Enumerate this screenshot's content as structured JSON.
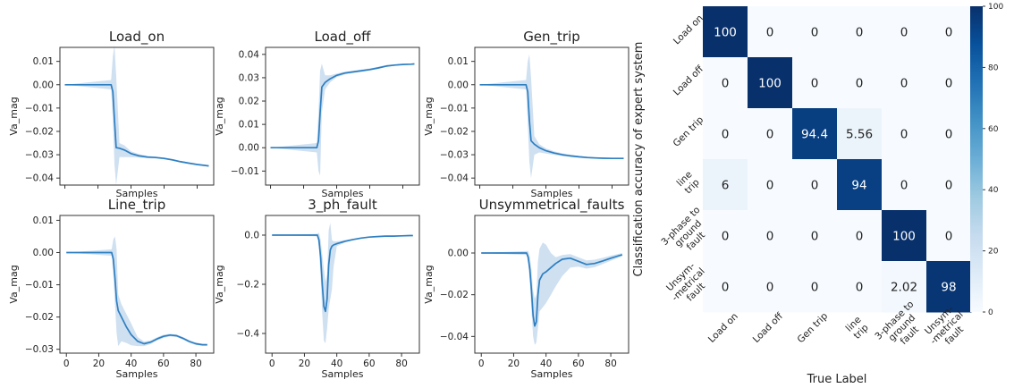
{
  "chart_data": [
    {
      "type": "line",
      "title": "Load_on",
      "xlabel": "Samples",
      "ylabel": "Va_mag",
      "xlim": [
        -3,
        90
      ],
      "ylim": [
        -0.043,
        0.016
      ],
      "xticks": [],
      "yticks": [
        0.01,
        0.0,
        -0.01,
        -0.02,
        -0.03,
        -0.04
      ],
      "ytick_labels": [
        "0.01",
        "0.00",
        "−0.01",
        "−0.02",
        "−0.03",
        "−0.04"
      ],
      "grid": false,
      "band_color": "#cfe0f1",
      "line_color": "#2e7fc1",
      "x": [
        0,
        28,
        29,
        30,
        31,
        33,
        36,
        40,
        45,
        50,
        55,
        60,
        65,
        70,
        75,
        80,
        85,
        87
      ],
      "y": [
        0.0,
        0.0,
        -0.003,
        -0.015,
        -0.027,
        -0.0272,
        -0.028,
        -0.0295,
        -0.0305,
        -0.031,
        -0.0312,
        -0.0316,
        -0.0322,
        -0.033,
        -0.0336,
        -0.0342,
        -0.0346,
        -0.0348
      ],
      "band_upper": [
        0.0,
        0.002,
        0.012,
        0.017,
        0.004,
        -0.025,
        -0.026,
        -0.0285,
        -0.0298,
        -0.0305,
        -0.0308,
        -0.0312,
        -0.0318,
        -0.0326,
        -0.0333,
        -0.034,
        -0.0344,
        -0.0346
      ],
      "band_lower": [
        0.0,
        -0.002,
        -0.015,
        -0.034,
        -0.043,
        -0.031,
        -0.031,
        -0.031,
        -0.0312,
        -0.0315,
        -0.0316,
        -0.032,
        -0.0326,
        -0.0334,
        -0.034,
        -0.0345,
        -0.0348,
        -0.035
      ]
    },
    {
      "type": "line",
      "title": "Load_off",
      "xlabel": "Samples",
      "ylabel": "Va_mag",
      "xlim": [
        -3,
        90
      ],
      "ylim": [
        -0.016,
        0.043
      ],
      "xticks": [],
      "yticks": [
        0.04,
        0.03,
        0.02,
        0.01,
        0.0,
        -0.01
      ],
      "ytick_labels": [
        "0.04",
        "0.03",
        "0.02",
        "0.01",
        "0.00",
        "−0.01"
      ],
      "grid": false,
      "band_color": "#cfe0f1",
      "line_color": "#2e7fc1",
      "x": [
        0,
        28,
        29,
        30,
        31,
        33,
        36,
        40,
        45,
        50,
        55,
        60,
        65,
        70,
        75,
        80,
        85,
        87
      ],
      "y": [
        0.0,
        0.0,
        0.003,
        0.015,
        0.026,
        0.028,
        0.0295,
        0.031,
        0.032,
        0.0325,
        0.033,
        0.0335,
        0.0342,
        0.035,
        0.0354,
        0.0357,
        0.0358,
        0.0359
      ],
      "band_upper": [
        0.0,
        0.002,
        0.015,
        0.033,
        0.036,
        0.031,
        0.031,
        0.0318,
        0.0326,
        0.033,
        0.0335,
        0.034,
        0.0347,
        0.0354,
        0.0357,
        0.0359,
        0.036,
        0.0361
      ],
      "band_lower": [
        0.0,
        -0.002,
        -0.01,
        -0.012,
        0.015,
        0.025,
        0.028,
        0.0302,
        0.0314,
        0.032,
        0.0325,
        0.033,
        0.0337,
        0.0346,
        0.0351,
        0.0355,
        0.0356,
        0.0357
      ]
    },
    {
      "type": "line",
      "title": "Gen_trip",
      "xlabel": "Samples",
      "ylabel": "Va_mag",
      "xlim": [
        -3,
        90
      ],
      "ylim": [
        -0.043,
        0.016
      ],
      "xticks": [],
      "yticks": [
        0.01,
        0.0,
        -0.01,
        -0.02,
        -0.03,
        -0.04
      ],
      "ytick_labels": [
        "0.01",
        "0.00",
        "−0.01",
        "−0.02",
        "−0.03",
        "−0.04"
      ],
      "grid": false,
      "band_color": "#cfe0f1",
      "line_color": "#2e7fc1",
      "x": [
        0,
        28,
        29,
        30,
        31,
        33,
        36,
        40,
        45,
        50,
        55,
        60,
        65,
        70,
        75,
        80,
        85,
        87
      ],
      "y": [
        0.0,
        0.0,
        -0.003,
        -0.015,
        -0.024,
        -0.0255,
        -0.027,
        -0.0283,
        -0.0293,
        -0.03,
        -0.0305,
        -0.0309,
        -0.0312,
        -0.0314,
        -0.0315,
        -0.0316,
        -0.0316,
        -0.0316
      ],
      "band_upper": [
        0.0,
        0.002,
        0.01,
        0.013,
        0.003,
        -0.022,
        -0.0255,
        -0.0273,
        -0.0285,
        -0.0294,
        -0.03,
        -0.0305,
        -0.0308,
        -0.0311,
        -0.0313,
        -0.0314,
        -0.0314,
        -0.0314
      ],
      "band_lower": [
        0.0,
        -0.002,
        -0.016,
        -0.033,
        -0.04,
        -0.03,
        -0.029,
        -0.0295,
        -0.0301,
        -0.0306,
        -0.031,
        -0.0313,
        -0.0316,
        -0.0317,
        -0.0318,
        -0.0318,
        -0.0318,
        -0.0318
      ]
    },
    {
      "type": "line",
      "title": "Line_trip",
      "xlabel": "Samples",
      "ylabel": "Va_mag",
      "xlim": [
        -4,
        91
      ],
      "ylim": [
        -0.0312,
        0.0115
      ],
      "xticks": [
        0,
        20,
        40,
        60,
        80
      ],
      "yticks": [
        0.01,
        0.0,
        -0.01,
        -0.02,
        -0.03
      ],
      "ytick_labels": [
        "0.01",
        "0.00",
        "−0.01",
        "−0.02",
        "−0.03"
      ],
      "grid": false,
      "band_color": "#cfe0f1",
      "line_color": "#2e7fc1",
      "x": [
        0,
        28,
        29,
        30,
        31,
        32,
        34,
        37,
        40,
        44,
        48,
        52,
        56,
        60,
        64,
        68,
        72,
        76,
        80,
        84,
        87
      ],
      "y": [
        0.0,
        0.0,
        -0.002,
        -0.008,
        -0.015,
        -0.018,
        -0.02,
        -0.023,
        -0.0255,
        -0.0275,
        -0.0283,
        -0.0278,
        -0.0268,
        -0.026,
        -0.0256,
        -0.0258,
        -0.0266,
        -0.0276,
        -0.0283,
        -0.0286,
        -0.0286
      ],
      "band_upper": [
        0.0,
        0.001,
        0.004,
        0.005,
        0.001,
        -0.013,
        -0.016,
        -0.019,
        -0.022,
        -0.0262,
        -0.0276,
        -0.0273,
        -0.0263,
        -0.0255,
        -0.0252,
        -0.0254,
        -0.0262,
        -0.0272,
        -0.0279,
        -0.0283,
        -0.0284
      ],
      "band_lower": [
        0.0,
        -0.001,
        -0.007,
        -0.016,
        -0.025,
        -0.029,
        -0.0275,
        -0.028,
        -0.0288,
        -0.029,
        -0.029,
        -0.0284,
        -0.0273,
        -0.0265,
        -0.026,
        -0.0262,
        -0.027,
        -0.028,
        -0.0287,
        -0.0289,
        -0.0289
      ]
    },
    {
      "type": "line",
      "title": "3_ph_fault",
      "xlabel": "Samples",
      "ylabel": "Va_mag",
      "xlim": [
        -4,
        91
      ],
      "ylim": [
        -0.48,
        0.08
      ],
      "xticks": [
        0,
        20,
        40,
        60,
        80
      ],
      "yticks": [
        0.0,
        -0.2,
        -0.4
      ],
      "ytick_labels": [
        "0.0",
        "−0.2",
        "−0.4"
      ],
      "grid": false,
      "band_color": "#cfe0f1",
      "line_color": "#2e7fc1",
      "x": [
        0,
        28,
        29,
        30,
        31,
        32,
        33,
        34,
        35,
        36,
        37,
        38,
        40,
        45,
        50,
        55,
        60,
        65,
        70,
        75,
        80,
        85,
        87
      ],
      "y": [
        0.0,
        0.0,
        -0.02,
        -0.09,
        -0.2,
        -0.29,
        -0.31,
        -0.26,
        -0.12,
        -0.06,
        -0.045,
        -0.04,
        -0.035,
        -0.025,
        -0.018,
        -0.012,
        -0.008,
        -0.006,
        -0.004,
        -0.004,
        -0.003,
        -0.002,
        -0.002
      ],
      "band_upper": [
        0.0,
        0.005,
        0.01,
        -0.02,
        -0.08,
        -0.14,
        -0.19,
        -0.16,
        0.02,
        0.05,
        -0.02,
        -0.025,
        -0.025,
        -0.02,
        -0.015,
        -0.01,
        -0.006,
        -0.005,
        -0.003,
        -0.003,
        -0.002,
        -0.001,
        -0.001
      ],
      "band_lower": [
        0.0,
        -0.005,
        -0.05,
        -0.17,
        -0.32,
        -0.43,
        -0.44,
        -0.38,
        -0.3,
        -0.26,
        -0.22,
        -0.13,
        -0.045,
        -0.03,
        -0.021,
        -0.014,
        -0.01,
        -0.007,
        -0.005,
        -0.005,
        -0.004,
        -0.003,
        -0.003
      ]
    },
    {
      "type": "line",
      "title": "Unsymmetrical_faults",
      "xlabel": "Samples",
      "ylabel": "Va_mag",
      "xlim": [
        -4,
        91
      ],
      "ylim": [
        -0.048,
        0.018
      ],
      "xticks": [
        0,
        20,
        40,
        60,
        80
      ],
      "yticks": [
        0.0,
        -0.02,
        -0.04
      ],
      "ytick_labels": [
        "0.00",
        "−0.02",
        "−0.04"
      ],
      "grid": false,
      "band_color": "#cfe0f1",
      "line_color": "#2e7fc1",
      "x": [
        0,
        28,
        29,
        30,
        31,
        32,
        33,
        34,
        35,
        36,
        38,
        40,
        43,
        46,
        50,
        55,
        60,
        65,
        70,
        75,
        80,
        85,
        87
      ],
      "y": [
        0.0,
        0.0,
        -0.002,
        -0.008,
        -0.018,
        -0.03,
        -0.035,
        -0.033,
        -0.02,
        -0.013,
        -0.01,
        -0.009,
        -0.007,
        -0.005,
        -0.003,
        -0.0025,
        -0.004,
        -0.0055,
        -0.005,
        -0.0038,
        -0.0025,
        -0.0013,
        -0.0008
      ],
      "band_upper": [
        0.0,
        0.001,
        0.001,
        -0.002,
        -0.008,
        -0.018,
        -0.022,
        -0.02,
        -0.004,
        0.002,
        0.005,
        0.004,
        0.0,
        -0.002,
        -0.001,
        -0.0005,
        -0.002,
        -0.0035,
        -0.0032,
        -0.0023,
        -0.0013,
        -0.0004,
        0.0
      ],
      "band_lower": [
        0.0,
        -0.001,
        -0.005,
        -0.014,
        -0.028,
        -0.04,
        -0.044,
        -0.043,
        -0.036,
        -0.028,
        -0.026,
        -0.024,
        -0.02,
        -0.016,
        -0.011,
        -0.007,
        -0.0065,
        -0.0075,
        -0.0068,
        -0.0053,
        -0.0037,
        -0.0022,
        -0.0016
      ]
    },
    {
      "type": "heatmap",
      "xlabel": "True Label",
      "ylabel": "Classification accuracy of expert system",
      "row_labels": [
        [
          "Load on"
        ],
        [
          "Load off"
        ],
        [
          "Gen trip"
        ],
        [
          "line",
          "trip"
        ],
        [
          "3-phase to",
          "ground",
          "fault"
        ],
        [
          "Unsym-",
          "-metrical",
          "fault"
        ]
      ],
      "col_labels": [
        [
          "Load on"
        ],
        [
          "Load off"
        ],
        [
          "Gen trip"
        ],
        [
          "line",
          "trip"
        ],
        [
          "3-phase to",
          "ground",
          "fault"
        ],
        [
          "Unsym-",
          "-metrical",
          "fault"
        ]
      ],
      "values": [
        [
          100,
          0,
          0,
          0,
          0,
          0
        ],
        [
          0,
          100,
          0,
          0,
          0,
          0
        ],
        [
          0,
          0,
          94.4,
          5.56,
          0,
          0
        ],
        [
          6,
          0,
          0,
          94,
          0,
          0
        ],
        [
          0,
          0,
          0,
          0,
          100,
          0
        ],
        [
          0,
          0,
          0,
          0,
          2.02,
          98
        ]
      ],
      "cell_labels": [
        [
          "100",
          "0",
          "0",
          "0",
          "0",
          "0"
        ],
        [
          "0",
          "100",
          "0",
          "0",
          "0",
          "0"
        ],
        [
          "0",
          "0",
          "94.4",
          "5.56",
          "0",
          "0"
        ],
        [
          "6",
          "0",
          "0",
          "94",
          "0",
          "0"
        ],
        [
          "0",
          "0",
          "0",
          "0",
          "100",
          "0"
        ],
        [
          "0",
          "0",
          "0",
          "0",
          "2.02",
          "98"
        ]
      ],
      "colorbar": {
        "min": 0,
        "max": 100,
        "ticks": [
          0,
          20,
          40,
          60,
          80,
          100
        ]
      },
      "colormap": [
        "#f7fbff",
        "#deebf7",
        "#c6dbef",
        "#9ecae1",
        "#6baed6",
        "#4292c6",
        "#2171b5",
        "#08519c",
        "#08306b"
      ]
    }
  ]
}
